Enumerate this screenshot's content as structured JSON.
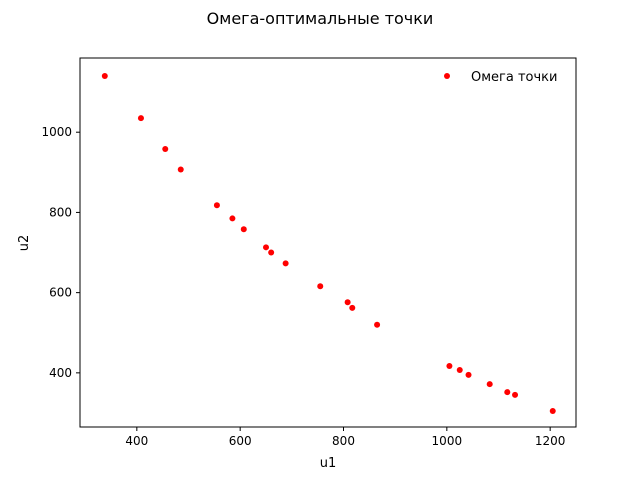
{
  "chart_data": {
    "type": "scatter",
    "title": "Омега-оптимальные точки",
    "xlabel": "u1",
    "ylabel": "u2",
    "xlim": [
      290,
      1250
    ],
    "ylim": [
      265,
      1185
    ],
    "xticks": [
      400,
      600,
      800,
      1000,
      1200
    ],
    "yticks": [
      400,
      600,
      800,
      1000
    ],
    "grid": false,
    "legend_position": "top-right",
    "series": [
      {
        "name": "Омега точки",
        "color": "#ff0000",
        "marker": "dot",
        "x": [
          338,
          408,
          455,
          485,
          555,
          585,
          607,
          650,
          660,
          688,
          755,
          808,
          817,
          865,
          1005,
          1025,
          1042,
          1083,
          1117,
          1132,
          1205
        ],
        "y": [
          1140,
          1035,
          958,
          907,
          818,
          785,
          758,
          713,
          700,
          673,
          616,
          576,
          562,
          520,
          417,
          407,
          395,
          372,
          352,
          345,
          305
        ]
      }
    ]
  }
}
